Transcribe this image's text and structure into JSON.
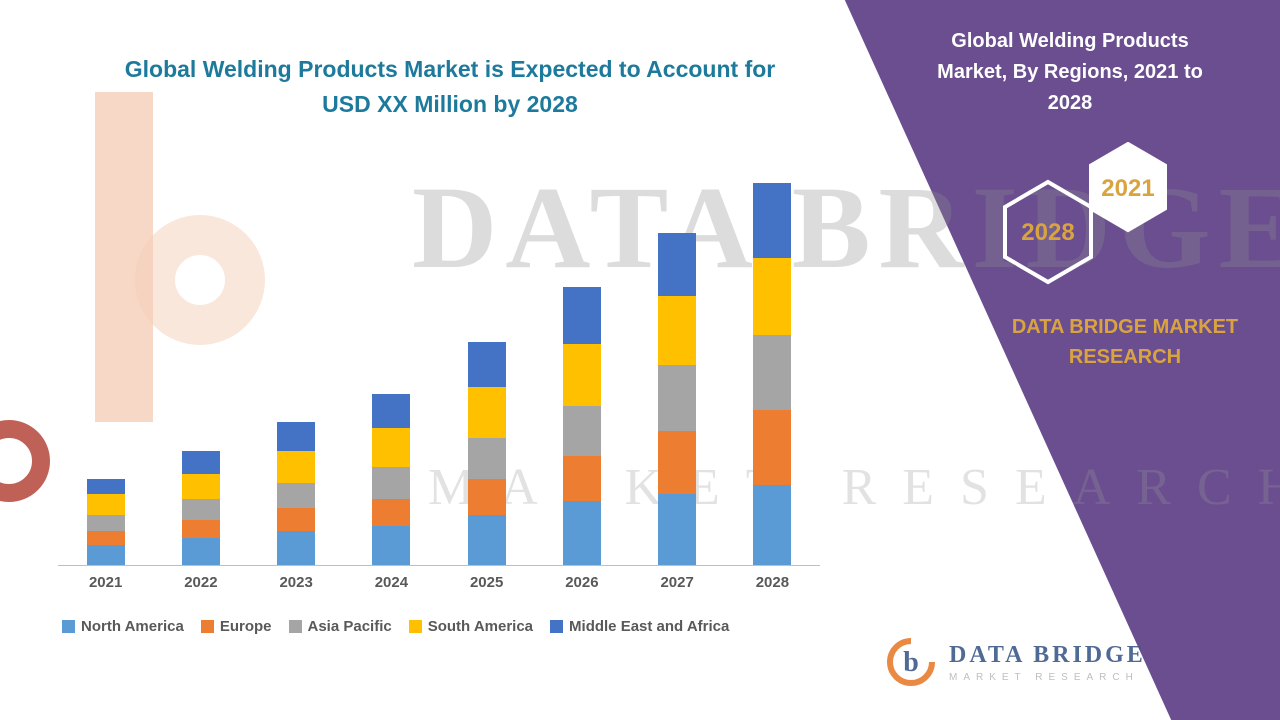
{
  "colors": {
    "accent_purple": "#6a4e8f",
    "title_teal": "#1d7a9c",
    "gold": "#d9a440",
    "axis_gray": "#595959"
  },
  "chart_data": {
    "type": "bar",
    "stacked": true,
    "title": "Global Welding Products Market is Expected to Account for USD XX Million by 2028",
    "categories": [
      "2021",
      "2022",
      "2023",
      "2024",
      "2025",
      "2026",
      "2027",
      "2028"
    ],
    "series": [
      {
        "name": "North America",
        "color": "#5b9bd5",
        "values": [
          9,
          12,
          15,
          17,
          22,
          28,
          31,
          35
        ]
      },
      {
        "name": "Europe",
        "color": "#ed7d31",
        "values": [
          6,
          8,
          10,
          12,
          16,
          20,
          28,
          33
        ]
      },
      {
        "name": "Asia Pacific",
        "color": "#a5a5a5",
        "values": [
          7,
          9,
          11,
          14,
          18,
          22,
          29,
          33
        ]
      },
      {
        "name": "South America",
        "color": "#ffc000",
        "values": [
          9,
          11,
          14,
          17,
          22,
          27,
          30,
          34
        ]
      },
      {
        "name": "Middle East and Africa",
        "color": "#4472c4",
        "values": [
          7,
          10,
          13,
          15,
          20,
          25,
          28,
          33
        ]
      }
    ],
    "xlabel": "",
    "ylabel": "",
    "ylim": [
      0,
      170
    ],
    "grid": false,
    "legend_position": "bottom"
  },
  "right_panel": {
    "title": "Global Welding Products Market, By Regions, 2021 to 2028",
    "badges": [
      {
        "label": "2028"
      },
      {
        "label": "2021"
      }
    ],
    "brand": "DATA BRIDGE MARKET RESEARCH"
  },
  "watermark": {
    "line1": "DATA BRIDGE",
    "line2": "MARKET RESEARCH"
  },
  "footer_logo": {
    "name": "DATA BRIDGE",
    "subtitle": "MARKET RESEARCH"
  }
}
